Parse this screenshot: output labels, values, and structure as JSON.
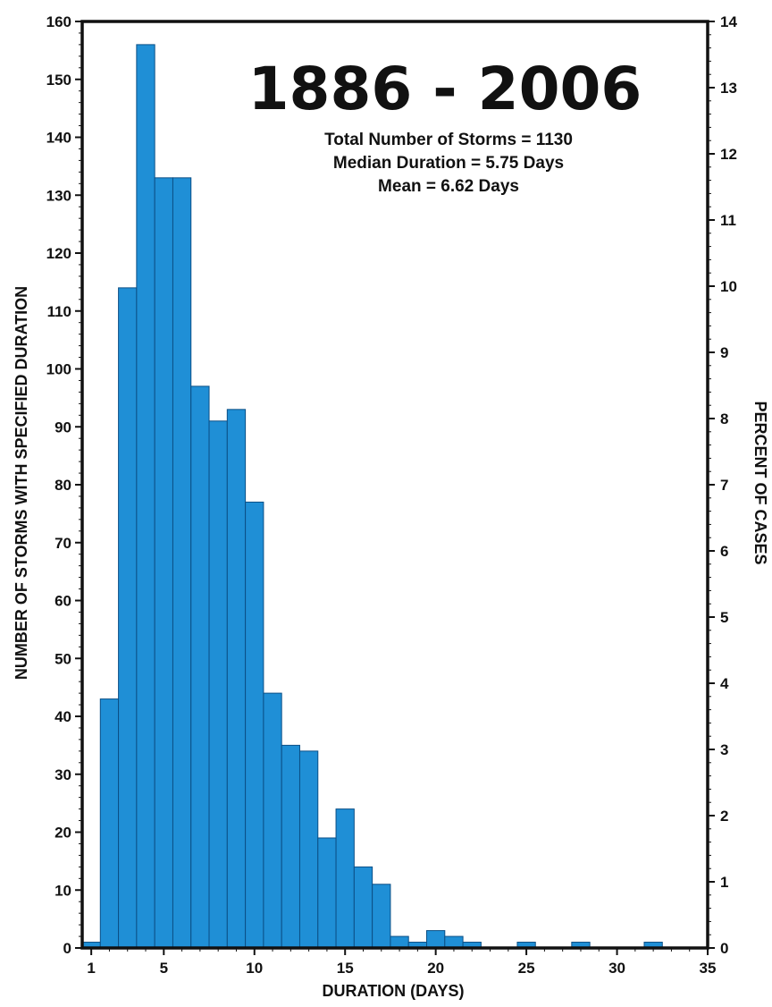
{
  "chart_data": {
    "type": "bar",
    "title": "1886 - 2006",
    "annotations": [
      "Total Number of Storms = 1130",
      "Median Duration = 5.75 Days",
      "Mean = 6.62 Days"
    ],
    "xlabel": "DURATION (DAYS)",
    "ylabel": "NUMBER OF STORMS WITH SPECIFIED DURATION",
    "ylabel_right": "PERCENT OF CASES",
    "xlim": [
      0.5,
      35
    ],
    "ylim": [
      0,
      160
    ],
    "ylim_right": [
      0,
      14
    ],
    "x_ticks": [
      1,
      5,
      10,
      15,
      20,
      25,
      30,
      35
    ],
    "y_ticks": [
      0,
      10,
      20,
      30,
      40,
      50,
      60,
      70,
      80,
      90,
      100,
      110,
      120,
      130,
      140,
      150,
      160
    ],
    "y_right_ticks": [
      0,
      1,
      2,
      3,
      4,
      5,
      6,
      7,
      8,
      9,
      10,
      11,
      12,
      13,
      14
    ],
    "bin_width": 1,
    "bins": [
      {
        "start": 0.5,
        "value": 1
      },
      {
        "start": 1.5,
        "value": 43
      },
      {
        "start": 2.5,
        "value": 114
      },
      {
        "start": 3.5,
        "value": 156
      },
      {
        "start": 4.5,
        "value": 133
      },
      {
        "start": 5.5,
        "value": 133
      },
      {
        "start": 6.5,
        "value": 97
      },
      {
        "start": 7.5,
        "value": 91
      },
      {
        "start": 8.5,
        "value": 93
      },
      {
        "start": 9.5,
        "value": 77
      },
      {
        "start": 10.5,
        "value": 44
      },
      {
        "start": 11.5,
        "value": 35
      },
      {
        "start": 12.5,
        "value": 34
      },
      {
        "start": 13.5,
        "value": 19
      },
      {
        "start": 14.5,
        "value": 24
      },
      {
        "start": 15.5,
        "value": 14
      },
      {
        "start": 16.5,
        "value": 11
      },
      {
        "start": 17.5,
        "value": 2
      },
      {
        "start": 18.5,
        "value": 1
      },
      {
        "start": 19.5,
        "value": 3
      },
      {
        "start": 20.5,
        "value": 2
      },
      {
        "start": 21.5,
        "value": 1
      },
      {
        "start": 22.5,
        "value": 0
      },
      {
        "start": 23.5,
        "value": 0
      },
      {
        "start": 24.5,
        "value": 1
      },
      {
        "start": 25.5,
        "value": 0
      },
      {
        "start": 26.5,
        "value": 0
      },
      {
        "start": 27.5,
        "value": 1
      },
      {
        "start": 28.5,
        "value": 0
      },
      {
        "start": 29.5,
        "value": 0
      },
      {
        "start": 30.5,
        "value": 0
      },
      {
        "start": 31.5,
        "value": 1
      }
    ],
    "bar_color": "#1f8fd6",
    "bar_edge_color": "#0b4f86",
    "grid": false
  }
}
